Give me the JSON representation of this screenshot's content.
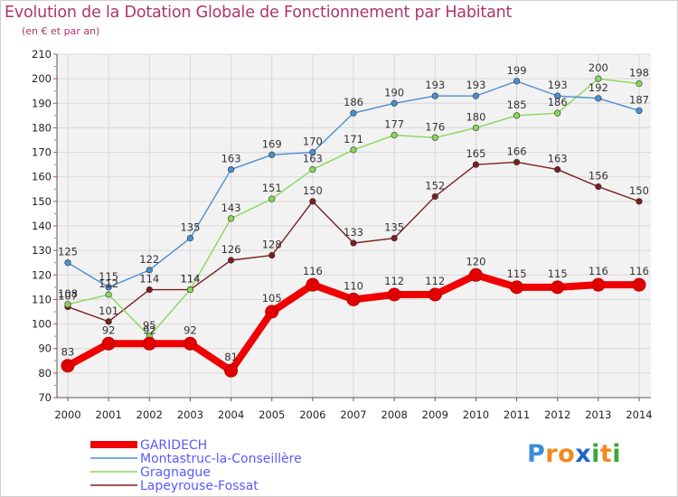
{
  "title": "Evolution de la Dotation Globale de Fonctionnement par Habitant",
  "subtitle": "(en € et par an)",
  "logo": {
    "text": "Proxiti",
    "letters": [
      "P",
      "r",
      "o",
      "x",
      "i",
      "t",
      "i"
    ],
    "colors": [
      "#3a8fd8",
      "#f08a1c",
      "#f08a1c",
      "#2266cc",
      "#3aa83a",
      "#f08a1c",
      "#3aa83a"
    ]
  },
  "chart_data": {
    "type": "line",
    "title": "Evolution de la Dotation Globale de Fonctionnement par Habitant",
    "xlabel": "",
    "ylabel": "(en € et par an)",
    "x": [
      "2000",
      "2001",
      "2002",
      "2003",
      "2004",
      "2005",
      "2006",
      "2007",
      "2008",
      "2009",
      "2010",
      "2011",
      "2012",
      "2013",
      "2014"
    ],
    "ylim": [
      70,
      210
    ],
    "yticks": [
      70,
      80,
      90,
      100,
      110,
      120,
      130,
      140,
      150,
      160,
      170,
      180,
      190,
      200,
      210
    ],
    "grid": true,
    "legend_position": "bottom-left",
    "series": [
      {
        "name": "Lapeyrouse-Fossat",
        "color": "#7a1f1f",
        "values": [
          107,
          101,
          114,
          114,
          126,
          128,
          150,
          133,
          135,
          152,
          165,
          166,
          163,
          156,
          150
        ]
      },
      {
        "name": "Gragnague",
        "color": "#8ad65a",
        "values": [
          108,
          112,
          95,
          114,
          143,
          151,
          163,
          171,
          177,
          176,
          180,
          185,
          186,
          200,
          198
        ]
      },
      {
        "name": "Montastruc-la-Conseillère",
        "color": "#4a8fd0",
        "values": [
          125,
          115,
          122,
          135,
          163,
          169,
          170,
          186,
          190,
          193,
          193,
          199,
          193,
          192,
          187
        ]
      },
      {
        "name": "GARIDECH",
        "color": "#f00000",
        "values": [
          83,
          92,
          92,
          92,
          81,
          105,
          116,
          110,
          112,
          112,
          120,
          115,
          115,
          116,
          116
        ]
      }
    ],
    "legend_order": [
      "GARIDECH",
      "Montastruc-la-Conseillère",
      "Gragnague",
      "Lapeyrouse-Fossat"
    ]
  }
}
